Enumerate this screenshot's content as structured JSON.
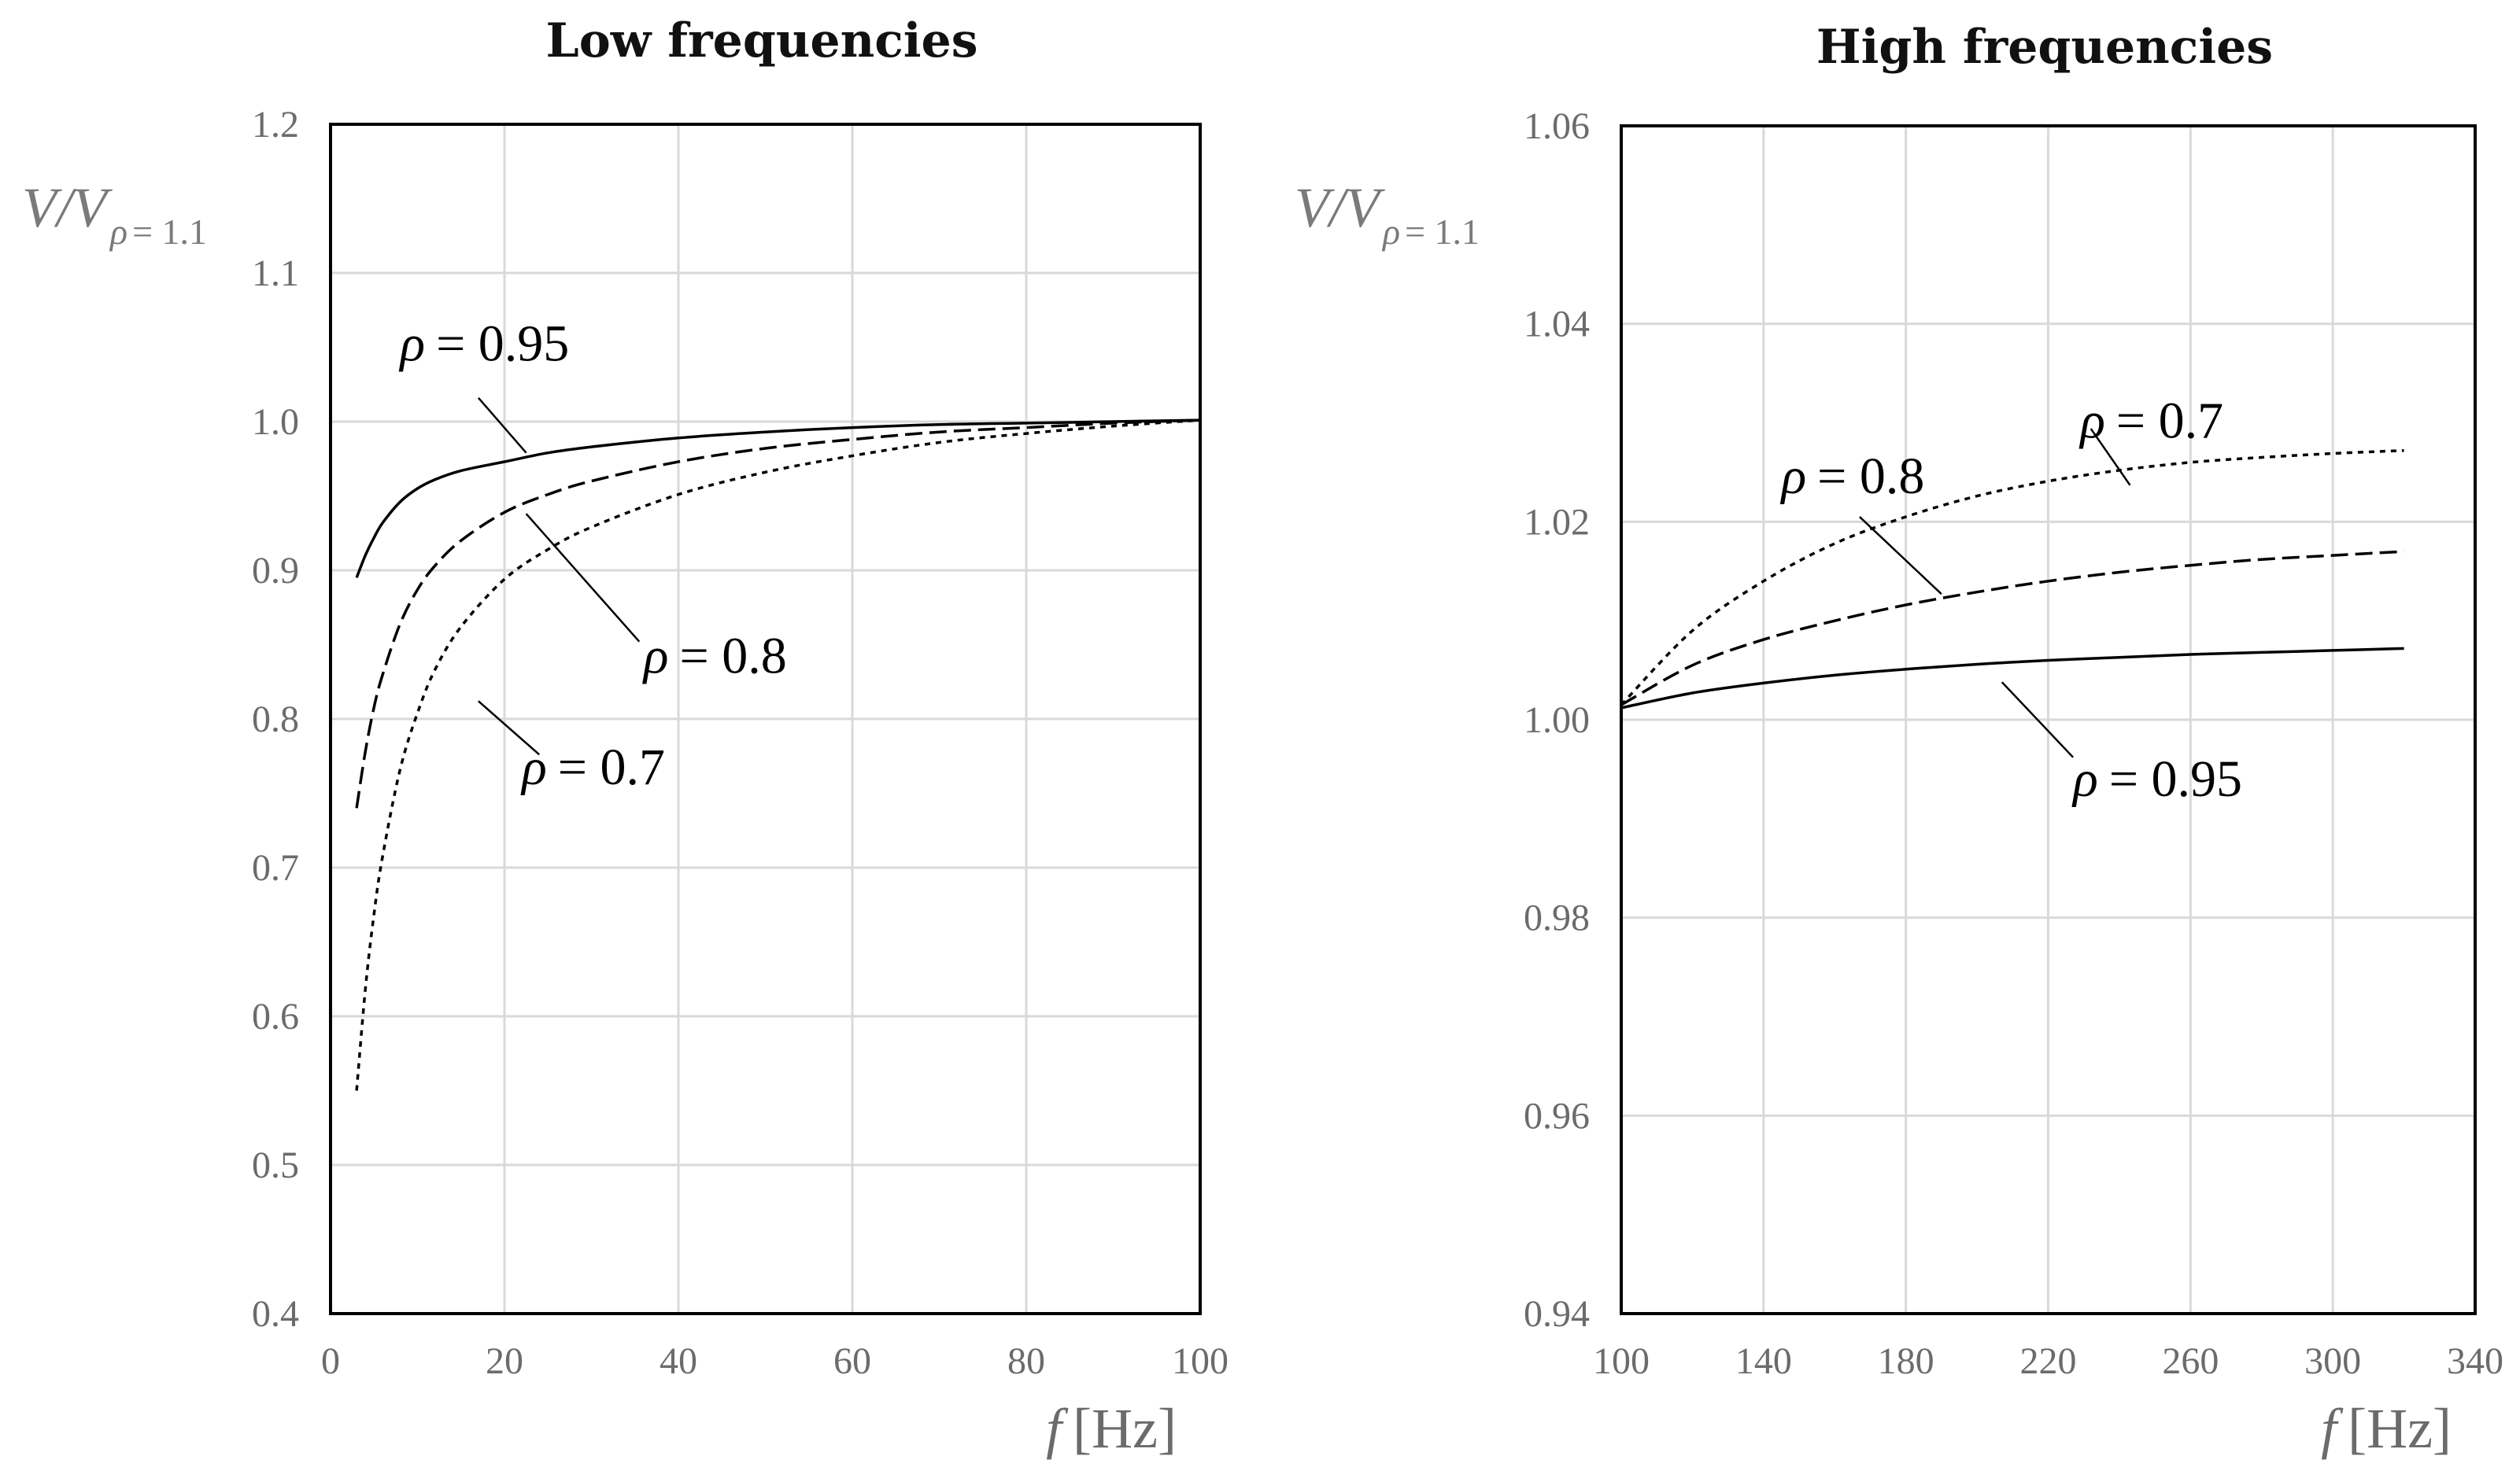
{
  "chart_data": [
    {
      "type": "line",
      "title": "Low frequencies",
      "xlabel": {
        "symbol": "f",
        "unit": "[Hz]"
      },
      "ylabel": {
        "main": "V/V",
        "sub_symbol": "ρ",
        "sub_rest": "= 1.1"
      },
      "xlim": [
        0,
        100
      ],
      "ylim": [
        0.4,
        1.2
      ],
      "xticks": [
        "0",
        "20",
        "40",
        "60",
        "80",
        "100"
      ],
      "yticks": [
        "0.4",
        "0.5",
        "0.6",
        "0.7",
        "0.8",
        "0.9",
        "1.0",
        "1.1",
        "1.2"
      ],
      "grid": true,
      "series": [
        {
          "name": "ρ = 0.95",
          "style": "solid",
          "x": [
            3,
            4,
            5,
            6,
            8,
            10,
            12,
            15,
            20,
            25,
            30,
            40,
            50,
            60,
            70,
            80,
            90,
            100
          ],
          "y": [
            0.895,
            0.91,
            0.922,
            0.932,
            0.946,
            0.955,
            0.961,
            0.967,
            0.973,
            0.979,
            0.983,
            0.989,
            0.993,
            0.996,
            0.998,
            0.999,
            1.0,
            1.001
          ]
        },
        {
          "name": "ρ = 0.8",
          "style": "dashed",
          "x": [
            3,
            4,
            5,
            6,
            8,
            10,
            12,
            15,
            20,
            25,
            30,
            40,
            50,
            60,
            70,
            80,
            90,
            100
          ],
          "y": [
            0.74,
            0.778,
            0.808,
            0.83,
            0.864,
            0.887,
            0.903,
            0.92,
            0.939,
            0.951,
            0.96,
            0.973,
            0.982,
            0.988,
            0.993,
            0.996,
            0.999,
            1.001
          ]
        },
        {
          "name": "ρ = 0.7",
          "style": "dotted",
          "x": [
            3,
            4,
            5,
            6,
            8,
            10,
            12,
            15,
            20,
            25,
            30,
            40,
            50,
            60,
            70,
            80,
            90,
            100
          ],
          "y": [
            0.55,
            0.618,
            0.669,
            0.708,
            0.766,
            0.804,
            0.833,
            0.862,
            0.894,
            0.914,
            0.929,
            0.951,
            0.966,
            0.977,
            0.986,
            0.992,
            0.997,
            1.001
          ]
        }
      ],
      "annotations": [
        {
          "symbol": "ρ",
          "text": "= 0.95",
          "series": "ρ = 0.95",
          "label_at": [
            8,
            1.041
          ],
          "line_from": [
            17,
            1.016
          ],
          "line_to": [
            22.5,
            0.979
          ]
        },
        {
          "symbol": "ρ",
          "text": "= 0.8",
          "series": "ρ = 0.8",
          "label_at": [
            36,
            0.831
          ],
          "line_from": [
            22.5,
            0.938
          ],
          "line_to": [
            35.5,
            0.852
          ]
        },
        {
          "symbol": "ρ",
          "text": "= 0.7",
          "series": "ρ = 0.7",
          "label_at": [
            22,
            0.756
          ],
          "line_from": [
            17,
            0.812
          ],
          "line_to": [
            24,
            0.776
          ]
        }
      ]
    },
    {
      "type": "line",
      "title": "High frequencies",
      "xlabel": {
        "symbol": "f",
        "unit": "[Hz]"
      },
      "ylabel": {
        "main": "V/V",
        "sub_symbol": "ρ",
        "sub_rest": "= 1.1"
      },
      "xlim": [
        100,
        340
      ],
      "ylim": [
        0.94,
        1.06
      ],
      "xticks": [
        "100",
        "140",
        "180",
        "220",
        "260",
        "300",
        "340"
      ],
      "yticks": [
        "0.94",
        "0.96",
        "0.98",
        "1.00",
        "1.02",
        "1.04",
        "1.06"
      ],
      "grid": true,
      "series": [
        {
          "name": "ρ = 0.95",
          "style": "solid",
          "x": [
            100,
            120,
            140,
            160,
            180,
            200,
            220,
            240,
            260,
            280,
            300,
            320
          ],
          "y": [
            1.0012,
            1.0027,
            1.0037,
            1.0045,
            1.0051,
            1.0056,
            1.006,
            1.0063,
            1.0066,
            1.0068,
            1.007,
            1.0072
          ]
        },
        {
          "name": "ρ = 0.8",
          "style": "dashed",
          "x": [
            100,
            120,
            140,
            160,
            180,
            200,
            220,
            240,
            260,
            280,
            300,
            320
          ],
          "y": [
            1.0015,
            1.0055,
            1.0081,
            1.01,
            1.0116,
            1.0129,
            1.014,
            1.0149,
            1.0156,
            1.0162,
            1.0166,
            1.017
          ]
        },
        {
          "name": "ρ = 0.7",
          "style": "dotted",
          "x": [
            100,
            120,
            140,
            160,
            180,
            200,
            220,
            240,
            260,
            280,
            300,
            320
          ],
          "y": [
            1.0015,
            1.009,
            1.014,
            1.0178,
            1.0205,
            1.0226,
            1.0241,
            1.0252,
            1.026,
            1.0265,
            1.0269,
            1.0272
          ]
        }
      ],
      "annotations": [
        {
          "symbol": "ρ",
          "text": "= 0.7",
          "series": "ρ = 0.7",
          "label_at": [
            229,
            1.0285
          ],
          "line_from": [
            232,
            1.0294
          ],
          "line_to": [
            243,
            1.0237
          ]
        },
        {
          "symbol": "ρ",
          "text": "= 0.8",
          "series": "ρ = 0.8",
          "label_at": [
            145,
            1.0229
          ],
          "line_from": [
            167,
            1.0205
          ],
          "line_to": [
            190,
            1.0127
          ]
        },
        {
          "symbol": "ρ",
          "text": "= 0.95",
          "series": "ρ = 0.95",
          "label_at": [
            227,
            0.9923
          ],
          "line_from": [
            207,
            1.0038
          ],
          "line_to": [
            227,
            0.9962
          ]
        }
      ]
    }
  ]
}
